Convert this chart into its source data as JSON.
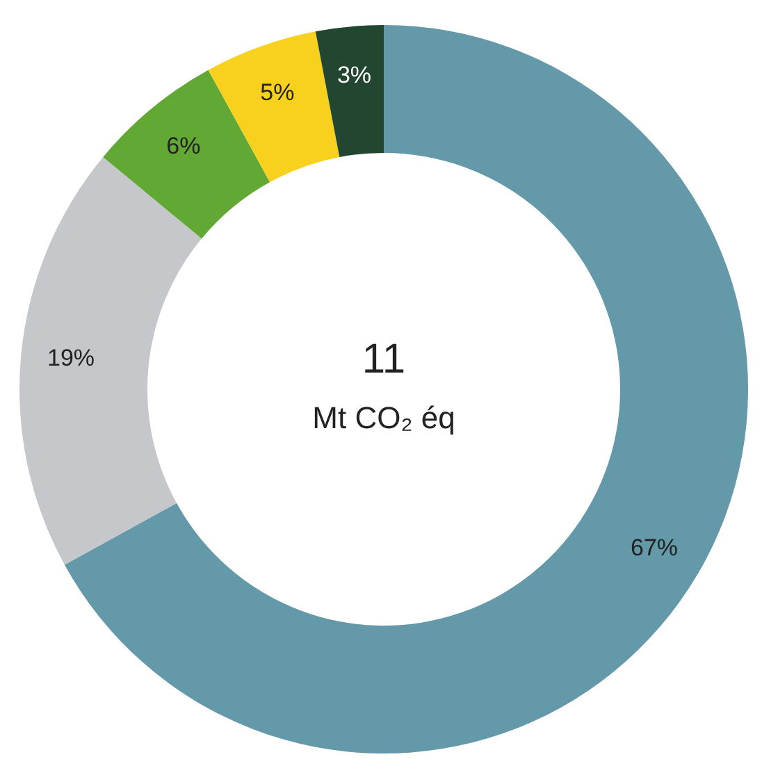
{
  "chart_data": {
    "type": "donut",
    "categories": [
      null,
      null,
      null,
      null,
      null
    ],
    "values": [
      67,
      19,
      6,
      5,
      3
    ],
    "colors": [
      "#6399a8",
      "#c6c7ca",
      "#62a835",
      "#f7d11e",
      "#234631"
    ],
    "value_labels": [
      "67%",
      "19%",
      "6%",
      "5%",
      "3%"
    ],
    "annotations": [
      "11",
      "Mt CO₂ éq"
    ]
  }
}
